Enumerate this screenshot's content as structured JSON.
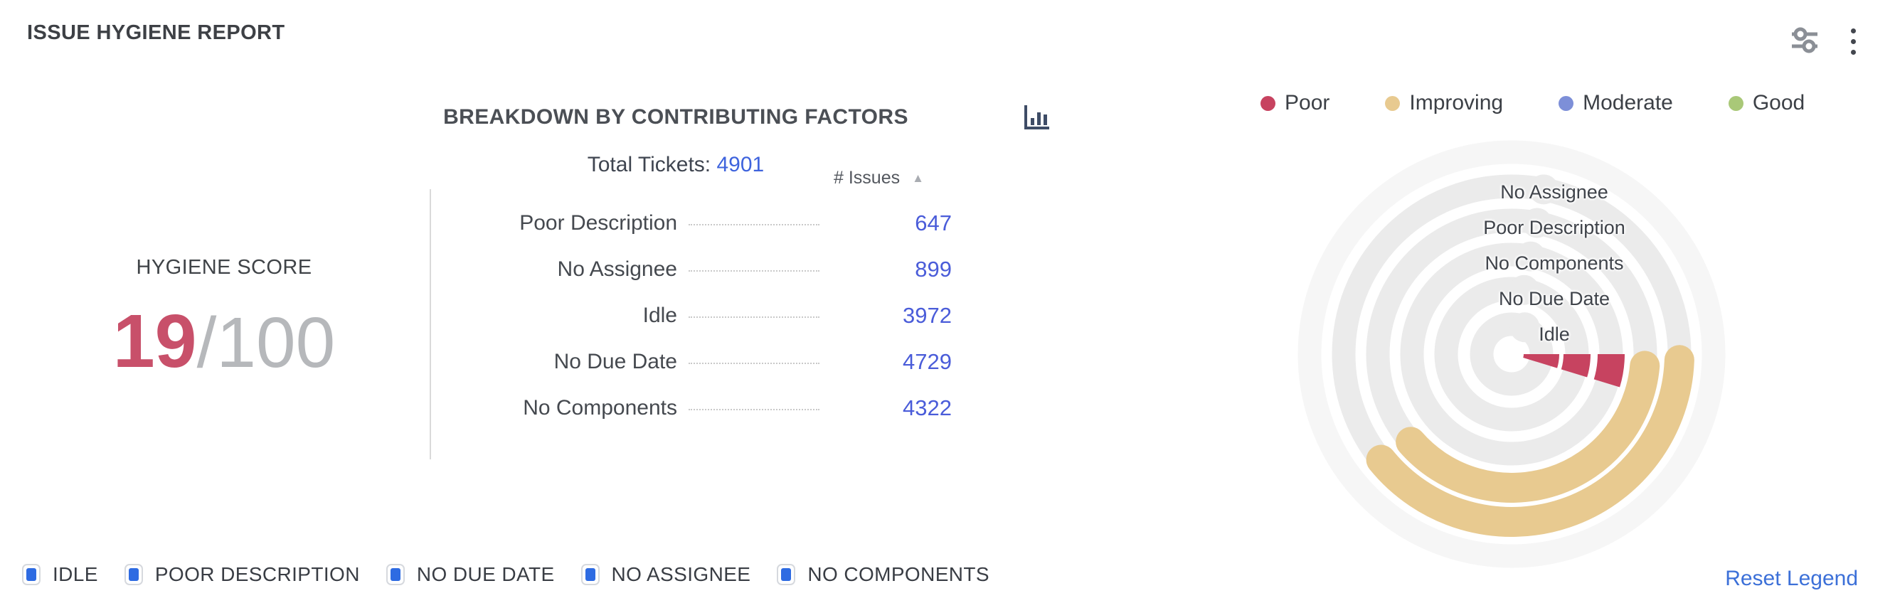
{
  "widget": {
    "title": "ISSUE HYGIENE REPORT"
  },
  "status_legend": {
    "items": [
      {
        "label": "Poor",
        "color": "#c74360"
      },
      {
        "label": "Improving",
        "color": "#e8ca90"
      },
      {
        "label": "Moderate",
        "color": "#7d8fd8"
      },
      {
        "label": "Good",
        "color": "#a9c878"
      }
    ]
  },
  "breakdown": {
    "heading": "BREAKDOWN BY CONTRIBUTING FACTORS",
    "total_label": "Total Tickets:",
    "total_value": "4901",
    "column_header": "# Issues",
    "sort_icon": "▲",
    "rows": [
      {
        "label": "Poor Description",
        "value": "647"
      },
      {
        "label": "No Assignee",
        "value": "899"
      },
      {
        "label": "Idle",
        "value": "3972"
      },
      {
        "label": "No Due Date",
        "value": "4729"
      },
      {
        "label": "No Components",
        "value": "4322"
      }
    ]
  },
  "score": {
    "label": "HYGIENE SCORE",
    "value": "19",
    "max": "/100",
    "value_color": "#c8506a",
    "max_color": "#b6b8bb"
  },
  "chart_data": {
    "type": "radial-bar",
    "title": "Breakdown by contributing factors (radial hygiene chart)",
    "total_tickets": 4901,
    "track_color": "#ebebeb",
    "faint_outer_ring_color": "#f6f6f6",
    "rings_outer_to_inner": [
      {
        "category": "No Assignee",
        "issues": 899,
        "status": "Improving",
        "color": "#e8ca90",
        "arc_start_deg": 2,
        "arc_end_deg": 141
      },
      {
        "category": "Poor Description",
        "issues": 647,
        "status": "Improving",
        "color": "#e8ca90",
        "arc_start_deg": 5,
        "arc_end_deg": 139
      },
      {
        "category": "No Components",
        "issues": 4322,
        "status": "Poor",
        "color": "#c74360",
        "arc_start_deg": 0,
        "arc_end_deg": 17
      },
      {
        "category": "No Due Date",
        "issues": 4729,
        "status": "Poor",
        "color": "#c74360",
        "arc_start_deg": 0,
        "arc_end_deg": 17
      },
      {
        "category": "Idle",
        "issues": 3972,
        "status": "Poor",
        "color": "#c74360",
        "arc_start_deg": 0,
        "arc_end_deg": 17
      }
    ]
  },
  "bottom_legend": {
    "items": [
      "IDLE",
      "POOR DESCRIPTION",
      "NO DUE DATE",
      "NO ASSIGNEE",
      "NO COMPONENTS"
    ],
    "reset_label": "Reset Legend"
  }
}
